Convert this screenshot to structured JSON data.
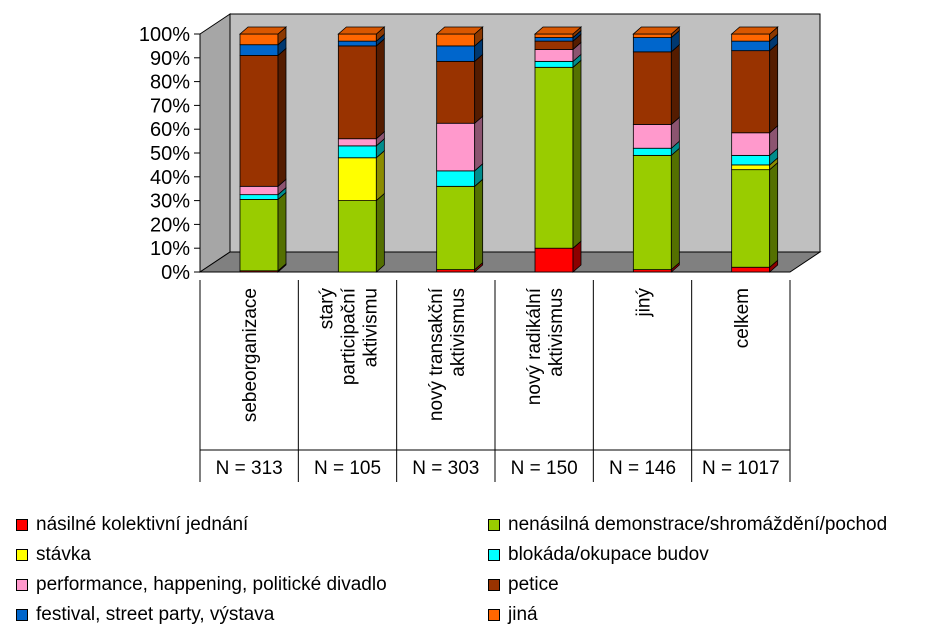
{
  "chart_data": {
    "type": "bar",
    "stacked": "percent",
    "categories": [
      "sebeorganizace",
      "starý participační aktivismu",
      "nový transakční aktivismus",
      "nový radikální aktivismus",
      "jiný",
      "celkem"
    ],
    "category_label_lines": [
      [
        "sebeorganizace"
      ],
      [
        "starý",
        "participační",
        "aktivismu"
      ],
      [
        "nový transakční",
        "aktivismus"
      ],
      [
        "nový radikální",
        "aktivismus"
      ],
      [
        "jiný"
      ],
      [
        "celkem"
      ]
    ],
    "n_labels": [
      "N = 313",
      "N = 105",
      "N = 303",
      "N = 150",
      "N = 146",
      "N = 1017"
    ],
    "ylim": [
      0,
      100
    ],
    "yticks": [
      "0%",
      "10%",
      "20%",
      "30%",
      "40%",
      "50%",
      "60%",
      "70%",
      "80%",
      "90%",
      "100%"
    ],
    "series": [
      {
        "name": "násilné kolektivní jednání",
        "color": "#ff0000",
        "values": [
          0.5,
          0,
          1,
          10,
          1,
          2
        ]
      },
      {
        "name": "nenásilná demonstrace/shromáždění/pochod",
        "color": "#99cc00",
        "values": [
          30,
          30,
          35,
          76,
          48,
          41
        ]
      },
      {
        "name": "stávka",
        "color": "#ffff00",
        "values": [
          0,
          18,
          0,
          0,
          0,
          2
        ]
      },
      {
        "name": "blokáda/okupace budov",
        "color": "#00ffff",
        "values": [
          2,
          5,
          6.5,
          2.5,
          3,
          4
        ]
      },
      {
        "name": "performance, happening, politické divadlo",
        "color": "#ff99cc",
        "values": [
          3.5,
          3,
          20,
          5,
          10,
          9.5
        ]
      },
      {
        "name": "petice",
        "color": "#993300",
        "values": [
          55,
          39,
          26,
          3.5,
          30.5,
          34.5
        ]
      },
      {
        "name": "festival, street party, výstava",
        "color": "#0066cc",
        "values": [
          4.5,
          2,
          6.5,
          1.5,
          6,
          4
        ]
      },
      {
        "name": "jiná",
        "color": "#ff6600",
        "values": [
          4.5,
          3,
          5,
          1.5,
          1.5,
          3
        ]
      }
    ],
    "legend_position": "bottom",
    "grid": false
  }
}
